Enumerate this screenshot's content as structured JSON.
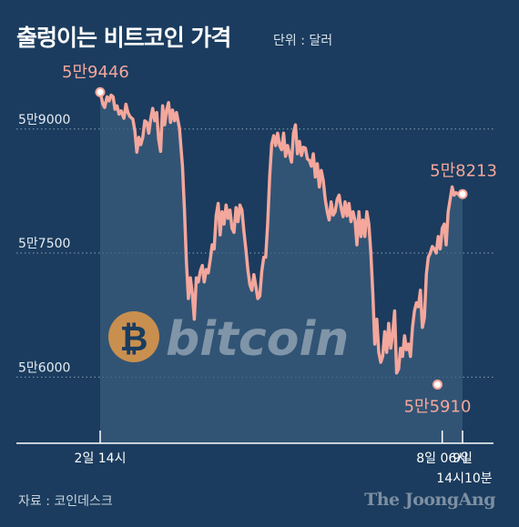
{
  "header": {
    "title": "출렁이는 비트코인 가격",
    "unit": "단위 : 달러"
  },
  "footer": {
    "source": "자료 : 코인데스크",
    "brand": "The JoongAng"
  },
  "logo": {
    "icon": "bitcoin-coin-icon",
    "wordmark": "bitcoin"
  },
  "colors": {
    "background": "#1b3c5e",
    "line": "#f4a79c",
    "area": "#3a5c7e",
    "annotation_text": "#f4a79c",
    "axis": "#ffffff",
    "grid": "#8aa1b8",
    "logo_coin": "#c98f4f"
  },
  "chart_data": {
    "type": "area",
    "xlabel": "",
    "ylabel": "",
    "ylim": [
      55200,
      59900
    ],
    "yticks": [
      {
        "value": 59000,
        "label": "5만9000"
      },
      {
        "value": 57500,
        "label": "5만7500"
      },
      {
        "value": 56000,
        "label": "5만6000"
      }
    ],
    "xticks": [
      {
        "x": 0,
        "label": "2일 14시"
      },
      {
        "x": 138,
        "label": "8일 06시"
      },
      {
        "x": 146.2,
        "label": "9일",
        "label2": "14시10분"
      }
    ],
    "annotations": [
      {
        "x": 0,
        "y": 59446,
        "label": "5만9446"
      },
      {
        "x": 136.1,
        "y": 55910,
        "label": "5만5910"
      },
      {
        "x": 146.2,
        "y": 58213,
        "label": "5만8213"
      }
    ],
    "series": [
      {
        "name": "",
        "points": [
          [
            0,
            59446
          ],
          [
            1.1,
            59300
          ],
          [
            1.8,
            59260
          ],
          [
            2.8,
            59390
          ],
          [
            3.6,
            59340
          ],
          [
            4.4,
            59410
          ],
          [
            5.2,
            59390
          ],
          [
            6.0,
            59240
          ],
          [
            6.8,
            59280
          ],
          [
            7.6,
            59180
          ],
          [
            8.4,
            59220
          ],
          [
            9.6,
            59130
          ],
          [
            10.4,
            59300
          ],
          [
            11.2,
            59200
          ],
          [
            12.0,
            59150
          ],
          [
            13.2,
            59120
          ],
          [
            14.0,
            58980
          ],
          [
            14.8,
            58720
          ],
          [
            15.6,
            58900
          ],
          [
            16.4,
            58810
          ],
          [
            17.2,
            58900
          ],
          [
            18.0,
            59100
          ],
          [
            18.8,
            59080
          ],
          [
            19.6,
            58950
          ],
          [
            20.4,
            59120
          ],
          [
            21.2,
            59250
          ],
          [
            22.0,
            59100
          ],
          [
            22.8,
            59200
          ],
          [
            23.6,
            58880
          ],
          [
            24.4,
            58730
          ],
          [
            25.2,
            59280
          ],
          [
            26.0,
            59050
          ],
          [
            26.8,
            59230
          ],
          [
            27.6,
            59320
          ],
          [
            28.4,
            59080
          ],
          [
            29.2,
            59230
          ],
          [
            30.0,
            59100
          ],
          [
            30.8,
            59200
          ],
          [
            32.0,
            59010
          ],
          [
            33.2,
            58550
          ],
          [
            34.0,
            58020
          ],
          [
            34.8,
            57400
          ],
          [
            35.6,
            56950
          ],
          [
            36.4,
            57200
          ],
          [
            37.2,
            57000
          ],
          [
            38.0,
            56700
          ],
          [
            38.8,
            57200
          ],
          [
            39.6,
            57150
          ],
          [
            40.4,
            57280
          ],
          [
            41.2,
            57350
          ],
          [
            42.0,
            57150
          ],
          [
            42.8,
            57300
          ],
          [
            43.6,
            57260
          ],
          [
            44.4,
            57420
          ],
          [
            45.2,
            57600
          ],
          [
            46.0,
            57550
          ],
          [
            46.8,
            57950
          ],
          [
            47.6,
            58100
          ],
          [
            48.4,
            57720
          ],
          [
            49.2,
            58000
          ],
          [
            50.0,
            57850
          ],
          [
            50.8,
            58080
          ],
          [
            51.6,
            57920
          ],
          [
            52.4,
            58020
          ],
          [
            53.2,
            57800
          ],
          [
            54.0,
            57750
          ],
          [
            54.8,
            58050
          ],
          [
            55.6,
            57880
          ],
          [
            56.4,
            58080
          ],
          [
            57.2,
            58020
          ],
          [
            58.0,
            57760
          ],
          [
            58.8,
            57540
          ],
          [
            59.6,
            57300
          ],
          [
            60.4,
            57120
          ],
          [
            61.2,
            57050
          ],
          [
            62.0,
            57240
          ],
          [
            62.8,
            57100
          ],
          [
            63.6,
            56950
          ],
          [
            64.4,
            56980
          ],
          [
            65.2,
            57280
          ],
          [
            66.0,
            57450
          ],
          [
            66.8,
            57450
          ],
          [
            67.6,
            57860
          ],
          [
            68.4,
            58430
          ],
          [
            69.2,
            58820
          ],
          [
            70.0,
            58920
          ],
          [
            70.8,
            58800
          ],
          [
            71.6,
            58950
          ],
          [
            72.4,
            58800
          ],
          [
            73.2,
            58750
          ],
          [
            74.0,
            58950
          ],
          [
            74.8,
            58670
          ],
          [
            75.6,
            58800
          ],
          [
            76.4,
            58700
          ],
          [
            77.2,
            58600
          ],
          [
            78.0,
            58950
          ],
          [
            78.8,
            59050
          ],
          [
            79.6,
            58700
          ],
          [
            80.4,
            58850
          ],
          [
            81.2,
            58680
          ],
          [
            82.0,
            58780
          ],
          [
            82.8,
            58770
          ],
          [
            83.6,
            58640
          ],
          [
            84.4,
            58620
          ],
          [
            85.2,
            58550
          ],
          [
            86.0,
            58700
          ],
          [
            86.8,
            58420
          ],
          [
            87.6,
            58580
          ],
          [
            88.4,
            58300
          ],
          [
            89.2,
            58500
          ],
          [
            90.0,
            58380
          ],
          [
            90.8,
            58150
          ],
          [
            91.6,
            58000
          ],
          [
            92.4,
            57900
          ],
          [
            93.2,
            58120
          ],
          [
            94.0,
            57960
          ],
          [
            94.8,
            58000
          ],
          [
            95.6,
            58150
          ],
          [
            96.4,
            58200
          ],
          [
            97.2,
            58050
          ],
          [
            98.0,
            57940
          ],
          [
            98.8,
            58120
          ],
          [
            99.6,
            57950
          ],
          [
            100.4,
            58100
          ],
          [
            101.2,
            57880
          ],
          [
            102.0,
            58000
          ],
          [
            102.8,
            57900
          ],
          [
            103.6,
            57600
          ],
          [
            104.4,
            58000
          ],
          [
            105.2,
            57700
          ],
          [
            106.0,
            57900
          ],
          [
            106.8,
            57700
          ],
          [
            107.6,
            58000
          ],
          [
            108.4,
            57850
          ],
          [
            109.2,
            57500
          ],
          [
            110.0,
            57000
          ],
          [
            110.8,
            56400
          ],
          [
            111.6,
            56700
          ],
          [
            112.4,
            56300
          ],
          [
            113.2,
            56180
          ],
          [
            114.0,
            56250
          ],
          [
            114.8,
            56550
          ],
          [
            115.6,
            56300
          ],
          [
            116.4,
            56650
          ],
          [
            117.2,
            56350
          ],
          [
            118.0,
            56520
          ],
          [
            118.8,
            56800
          ],
          [
            119.6,
            56050
          ],
          [
            120.4,
            56100
          ],
          [
            121.2,
            56350
          ],
          [
            122.0,
            56250
          ],
          [
            122.8,
            56500
          ],
          [
            123.6,
            56330
          ],
          [
            124.4,
            56400
          ],
          [
            125.2,
            56250
          ],
          [
            126.0,
            56600
          ],
          [
            126.8,
            56800
          ],
          [
            127.6,
            56900
          ],
          [
            128.4,
            56850
          ],
          [
            129.2,
            57050
          ],
          [
            130.0,
            56600
          ],
          [
            130.8,
            56720
          ],
          [
            131.6,
            57250
          ],
          [
            132.4,
            57450
          ],
          [
            133.2,
            57500
          ],
          [
            134.0,
            57580
          ],
          [
            134.8,
            57550
          ],
          [
            135.6,
            57500
          ],
          [
            136.4,
            57700
          ],
          [
            137.2,
            57550
          ],
          [
            138.0,
            57800
          ],
          [
            138.8,
            57850
          ],
          [
            139.6,
            57600
          ],
          [
            140.4,
            58000
          ],
          [
            141.2,
            58150
          ],
          [
            142.0,
            58300
          ],
          [
            142.8,
            58200
          ],
          [
            143.6,
            58230
          ],
          [
            144.4,
            58213
          ],
          [
            145.2,
            58200
          ],
          [
            146.2,
            58213
          ]
        ]
      }
    ]
  }
}
